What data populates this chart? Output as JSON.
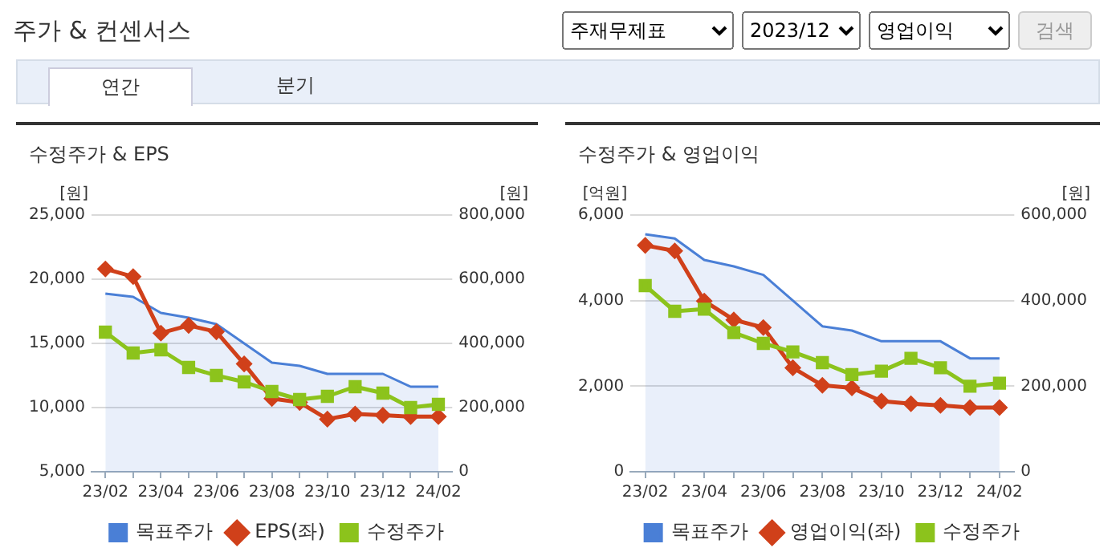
{
  "chart_data": [
    {
      "type": "other",
      "title": "주가 & 컨센서스",
      "annotations": [
        "주재무제표",
        "2023/12",
        "영업이익",
        "검색",
        "연간",
        "분기"
      ]
    },
    {
      "type": "line",
      "title": "수정주가 & EPS",
      "ylabel": "[원]",
      "y2label": "[원]",
      "categories": [
        "23/02",
        null,
        "23/04",
        null,
        "23/06",
        null,
        "23/08",
        null,
        "23/10",
        null,
        "23/12",
        null,
        "24/02"
      ],
      "series": [
        {
          "name": "목표주가",
          "type": "area",
          "axis": "y2",
          "color": "#4a7fd6",
          "marker": "none",
          "values": [
            555000,
            545000,
            495000,
            480000,
            460000,
            400000,
            340000,
            330000,
            305000,
            305000,
            305000,
            265000,
            265000
          ]
        },
        {
          "name": "EPS(좌)",
          "type": "line",
          "axis": "y",
          "color": "#d0401a",
          "marker": "diamond",
          "values": [
            20800,
            20200,
            15800,
            16400,
            15900,
            13400,
            10700,
            10400,
            9100,
            9500,
            9400,
            9300,
            9300
          ]
        },
        {
          "name": "수정주가",
          "type": "line",
          "axis": "y2",
          "color": "#8cc31c",
          "marker": "square",
          "values": [
            435000,
            370000,
            380000,
            325000,
            300000,
            280000,
            250000,
            225000,
            235000,
            265000,
            245000,
            200000,
            210000
          ]
        }
      ],
      "ylim": [
        5000,
        25000
      ],
      "yticks": [
        {
          "value": 5000,
          "label": "5,000"
        },
        {
          "value": 10000,
          "label": "10,000"
        },
        {
          "value": 15000,
          "label": "15,000"
        },
        {
          "value": 20000,
          "label": "20,000"
        },
        {
          "value": 25000,
          "label": "25,000"
        }
      ],
      "y2lim": [
        0,
        800000
      ],
      "y2ticks": [
        0,
        {
          "value": 200000,
          "label": "200,000"
        },
        {
          "value": 400000,
          "label": "400,000"
        },
        {
          "value": 600000,
          "label": "600,000"
        },
        {
          "value": 800000,
          "label": "800,000"
        }
      ],
      "grid": "y",
      "legend": "bottom"
    },
    {
      "type": "line",
      "title": "수정주가 & 영업이익",
      "ylabel": "[억원]",
      "y2label": "[원]",
      "categories": [
        "23/02",
        null,
        "23/04",
        null,
        "23/06",
        null,
        "23/08",
        null,
        "23/10",
        null,
        "23/12",
        null,
        "24/02"
      ],
      "series": [
        {
          "name": "목표주가",
          "type": "area",
          "axis": "y2",
          "color": "#4a7fd6",
          "marker": "none",
          "values": [
            555000,
            545000,
            495000,
            480000,
            460000,
            400000,
            340000,
            330000,
            305000,
            305000,
            305000,
            265000,
            265000
          ]
        },
        {
          "name": "영업이익(좌)",
          "type": "line",
          "axis": "y",
          "color": "#d0401a",
          "marker": "diamond",
          "values": [
            5290,
            5160,
            3990,
            3550,
            3370,
            2430,
            2020,
            1960,
            1650,
            1590,
            1550,
            1500,
            1500
          ]
        },
        {
          "name": "수정주가",
          "type": "line",
          "axis": "y2",
          "color": "#8cc31c",
          "marker": "square",
          "values": [
            435000,
            375000,
            380000,
            325000,
            300000,
            280000,
            255000,
            227000,
            235000,
            265000,
            243000,
            200000,
            207000
          ]
        }
      ],
      "ylim": [
        0,
        6000
      ],
      "yticks": [
        0,
        {
          "value": 2000,
          "label": "2,000"
        },
        {
          "value": 4000,
          "label": "4,000"
        },
        {
          "value": 6000,
          "label": "6,000"
        }
      ],
      "y2lim": [
        0,
        600000
      ],
      "y2ticks": [
        0,
        {
          "value": 200000,
          "label": "200,000"
        },
        {
          "value": 400000,
          "label": "400,000"
        },
        {
          "value": 600000,
          "label": "600,000"
        }
      ],
      "grid": "y",
      "legend": "bottom"
    }
  ]
}
